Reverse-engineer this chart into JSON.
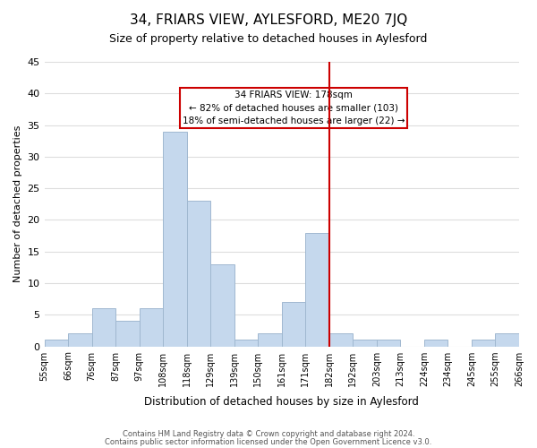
{
  "title": "34, FRIARS VIEW, AYLESFORD, ME20 7JQ",
  "subtitle": "Size of property relative to detached houses in Aylesford",
  "xlabel": "Distribution of detached houses by size in Aylesford",
  "ylabel": "Number of detached properties",
  "bins": [
    "55sqm",
    "66sqm",
    "76sqm",
    "87sqm",
    "97sqm",
    "108sqm",
    "118sqm",
    "129sqm",
    "139sqm",
    "150sqm",
    "161sqm",
    "171sqm",
    "182sqm",
    "192sqm",
    "203sqm",
    "213sqm",
    "224sqm",
    "234sqm",
    "245sqm",
    "255sqm",
    "266sqm"
  ],
  "counts": [
    1,
    2,
    6,
    4,
    6,
    34,
    23,
    13,
    1,
    2,
    7,
    18,
    2,
    1,
    1,
    0,
    1,
    0,
    1,
    2
  ],
  "bar_color": "#c5d8ed",
  "bar_edge_color": "#a0b8d0",
  "vline_x_index": 12,
  "vline_color": "#cc0000",
  "annotation_title": "34 FRIARS VIEW: 178sqm",
  "annotation_line1": "← 82% of detached houses are smaller (103)",
  "annotation_line2": "18% of semi-detached houses are larger (22) →",
  "annotation_box_color": "#ffffff",
  "annotation_box_edge": "#cc0000",
  "ylim": [
    0,
    45
  ],
  "yticks": [
    0,
    5,
    10,
    15,
    20,
    25,
    30,
    35,
    40,
    45
  ],
  "footer1": "Contains HM Land Registry data © Crown copyright and database right 2024.",
  "footer2": "Contains public sector information licensed under the Open Government Licence v3.0.",
  "bg_color": "#ffffff",
  "grid_color": "#dddddd"
}
